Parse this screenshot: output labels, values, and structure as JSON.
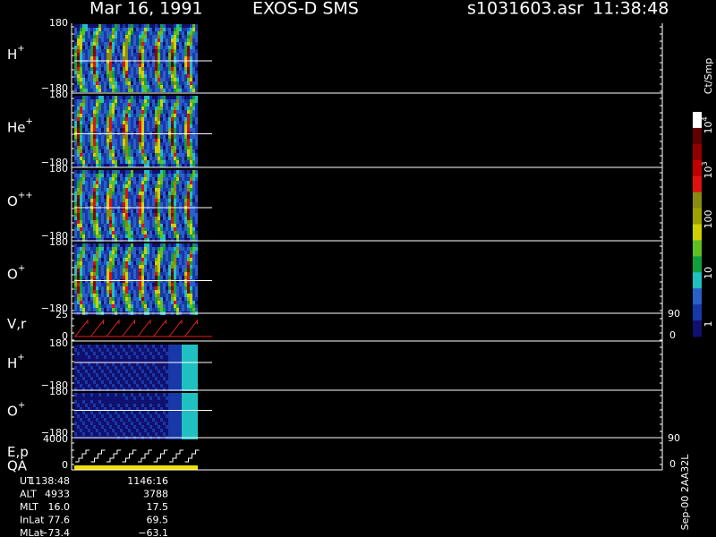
{
  "header": {
    "date": "Mar 16, 1991",
    "instrument": "EXOS-D SMS",
    "file": "s1031603.asr",
    "time": "11:38:48"
  },
  "panels": [
    {
      "label": "H",
      "sup": "+",
      "top": "180",
      "bottom": "−180"
    },
    {
      "label": "He",
      "sup": "+",
      "top": "180",
      "bottom": "−180"
    },
    {
      "label": "O",
      "sup": "++",
      "top": "180",
      "bottom": "−180"
    },
    {
      "label": "O",
      "sup": "+",
      "top": "180",
      "bottom": "−180"
    },
    {
      "label": "V,r",
      "top": "25",
      "bottom": "0",
      "right_top": "90",
      "right_bottom": "0"
    },
    {
      "label": "H",
      "sup": "+",
      "top": "180",
      "bottom": "−180"
    },
    {
      "label": "O",
      "sup": "+",
      "top": "180",
      "bottom": "−180"
    },
    {
      "label": "E,p",
      "label2": "QA",
      "top": "4000",
      "bottom": "0",
      "right_top": "90",
      "right_bottom": "0"
    }
  ],
  "colorbar": {
    "title": "Ct/Smp",
    "ticks": [
      {
        "base": "10",
        "exp": "4"
      },
      {
        "base": "10",
        "exp": "3"
      },
      {
        "base": "100"
      },
      {
        "base": "10"
      },
      {
        "base": "1"
      }
    ]
  },
  "footer": {
    "rows": [
      [
        "UT",
        "1138:48",
        "1146:16"
      ],
      [
        "ALT",
        "4933",
        "3788"
      ],
      [
        "MLT",
        "16.0",
        "17.5"
      ],
      [
        "InLat",
        "77.6",
        "69.5"
      ],
      [
        "MLat",
        "−73.4",
        "−63.1"
      ]
    ]
  },
  "side_note": "Sep-00 2AA32L"
}
